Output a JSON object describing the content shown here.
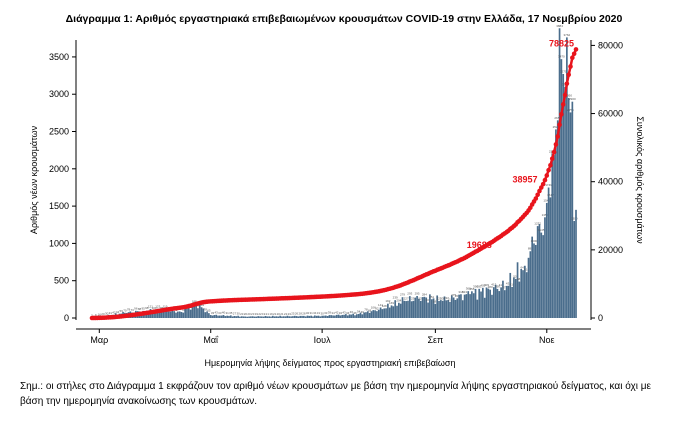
{
  "chart_data": {
    "type": "bar",
    "title": "Διάγραμμα 1: Αριθμός εργαστηριακά επιβεβαιωμένων κρουσμάτων COVID-19 στην Ελλάδα, 17 Νοεμβρίου 2020",
    "xlabel": "Ημερομηνία λήψης δείγματος προς εργαστηριακή επιβεβαίωση",
    "ylabel": "Αριθμός νέων κρουσμάτων",
    "y2label": "Συνολικός αριθμός κρουσμάτων",
    "x_tick_labels": [
      "Μαρ",
      "Μαΐ",
      "Ιουλ",
      "Σεπ",
      "Νοε"
    ],
    "x_tick_dates": [
      "2020-03-01",
      "2020-05-01",
      "2020-07-01",
      "2020-09-01",
      "2020-11-01"
    ],
    "date_range": [
      "2020-02-26",
      "2020-11-17"
    ],
    "ylim": [
      0,
      3700
    ],
    "yticks": [
      0,
      500,
      1000,
      1500,
      2000,
      2500,
      3000,
      3500
    ],
    "y2lim": [
      0,
      81000
    ],
    "y2ticks": [
      0,
      20000,
      40000,
      60000,
      80000
    ],
    "grid": false,
    "legend": "none",
    "colors": {
      "bars": "#4a6d8c",
      "cumulative": "#e8141c"
    },
    "anchors": [
      {
        "date": "2020-02-26",
        "value": 3
      },
      {
        "date": "2020-03-05",
        "value": 30
      },
      {
        "date": "2020-03-15",
        "value": 70
      },
      {
        "date": "2020-03-25",
        "value": 95
      },
      {
        "date": "2020-04-05",
        "value": 100
      },
      {
        "date": "2020-04-15",
        "value": 80
      },
      {
        "date": "2020-04-23",
        "value": 200
      },
      {
        "date": "2020-05-01",
        "value": 40
      },
      {
        "date": "2020-05-20",
        "value": 20
      },
      {
        "date": "2020-06-15",
        "value": 25
      },
      {
        "date": "2020-07-01",
        "value": 30
      },
      {
        "date": "2020-07-20",
        "value": 50
      },
      {
        "date": "2020-08-01",
        "value": 110
      },
      {
        "date": "2020-08-15",
        "value": 230
      },
      {
        "date": "2020-08-25",
        "value": 280
      },
      {
        "date": "2020-09-05",
        "value": 230
      },
      {
        "date": "2020-09-20",
        "value": 320
      },
      {
        "date": "2020-10-01",
        "value": 380
      },
      {
        "date": "2020-10-10",
        "value": 430
      },
      {
        "date": "2020-10-20",
        "value": 700
      },
      {
        "date": "2020-10-25",
        "value": 1000
      },
      {
        "date": "2020-10-31",
        "value": 1350
      },
      {
        "date": "2020-11-04",
        "value": 2200
      },
      {
        "date": "2020-11-07",
        "value": 2650
      },
      {
        "date": "2020-11-09",
        "value": 3470
      },
      {
        "date": "2020-11-11",
        "value": 3100
      },
      {
        "date": "2020-11-13",
        "value": 2950
      },
      {
        "date": "2020-11-15",
        "value": 2900
      },
      {
        "date": "2020-11-16",
        "value": 1300
      },
      {
        "date": "2020-11-17",
        "value": 1450
      }
    ],
    "cumulative_annotations": [
      {
        "date": "2020-10-03",
        "label": "19688",
        "value": 19688
      },
      {
        "date": "2020-10-28",
        "label": "38957",
        "value": 38957
      },
      {
        "date": "2020-11-17",
        "label": "78825",
        "value": 78825
      }
    ],
    "final_cumulative": 78825
  },
  "note": "Σημ.: οι στήλες στο Διάγραμμα 1 εκφράζουν τον αριθμό νέων κρουσμάτων με βάση την ημερομηνία λήψης εργαστηριακού δείγματος, και όχι με βάση την ημερομηνία ανακοίνωσης των κρουσμάτων."
}
